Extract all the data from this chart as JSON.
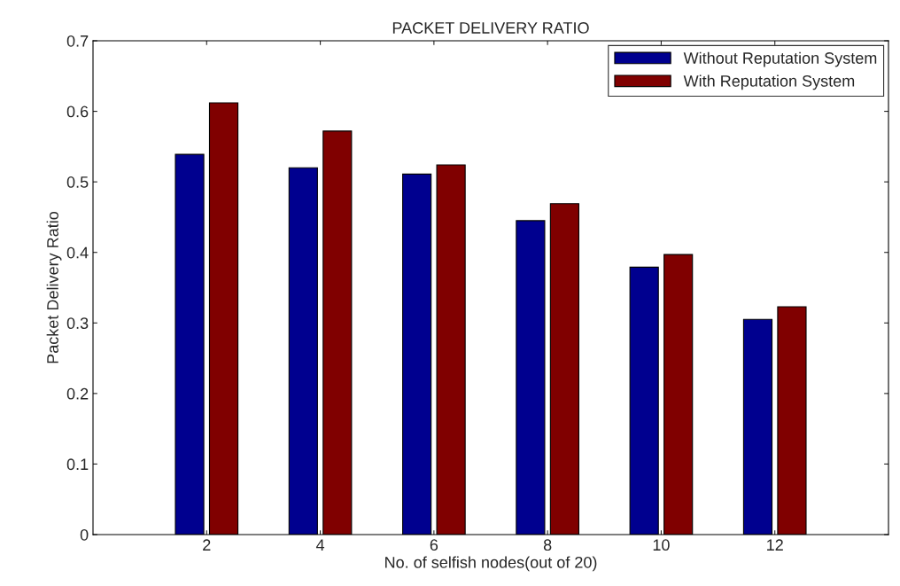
{
  "chart_data": {
    "type": "bar",
    "title": "PACKET DELIVERY RATIO",
    "xlabel": "No. of selfish nodes(out of 20)",
    "ylabel": "Packet Delivery Ratio",
    "x": [
      2,
      4,
      6,
      8,
      10,
      12
    ],
    "series": [
      {
        "name": "Without Reputation System",
        "color": "#00008f",
        "values": [
          0.539,
          0.52,
          0.511,
          0.445,
          0.379,
          0.305
        ]
      },
      {
        "name": "With Reputation System",
        "color": "#800000",
        "values": [
          0.612,
          0.572,
          0.524,
          0.469,
          0.397,
          0.323
        ]
      }
    ],
    "xlim": [
      0,
      14
    ],
    "xticks": [
      2,
      4,
      6,
      8,
      10,
      12
    ],
    "ylim": [
      0,
      0.7
    ],
    "yticks": [
      0,
      0.1,
      0.2,
      0.3,
      0.4,
      0.5,
      0.6,
      0.7
    ],
    "grid": false,
    "legend": "top right"
  }
}
